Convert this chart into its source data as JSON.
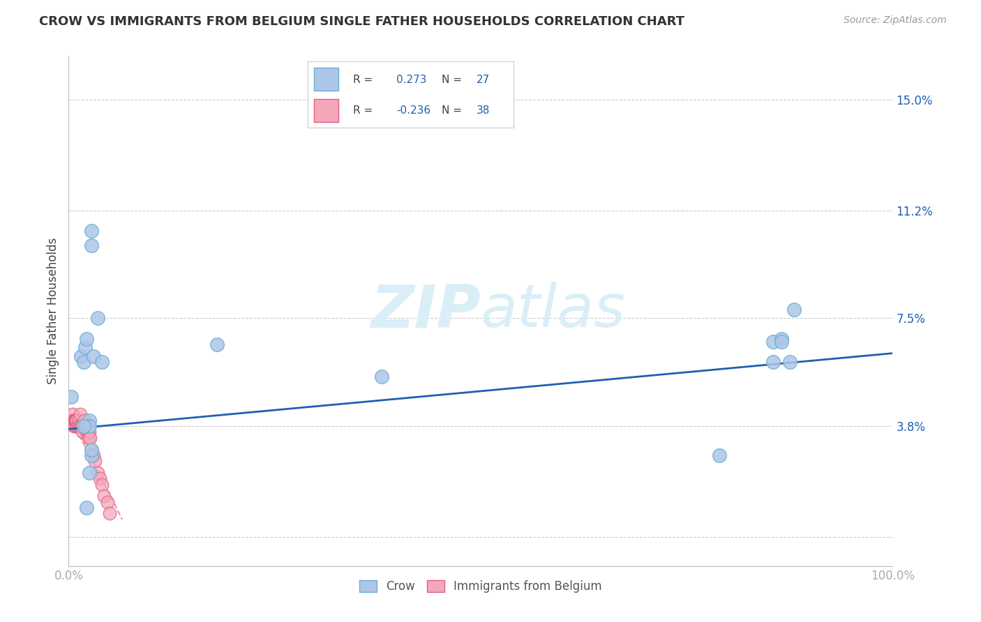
{
  "title": "CROW VS IMMIGRANTS FROM BELGIUM SINGLE FATHER HOUSEHOLDS CORRELATION CHART",
  "source": "Source: ZipAtlas.com",
  "ylabel": "Single Father Households",
  "xlim": [
    0.0,
    1.0
  ],
  "ylim": [
    -0.01,
    0.165
  ],
  "yticks": [
    0.0,
    0.038,
    0.075,
    0.112,
    0.15
  ],
  "ytick_labels": [
    "",
    "3.8%",
    "7.5%",
    "11.2%",
    "15.0%"
  ],
  "xticks": [
    0.0,
    0.1,
    0.2,
    0.3,
    0.4,
    0.5,
    0.6,
    0.7,
    0.8,
    0.9,
    1.0
  ],
  "xtick_labels": [
    "0.0%",
    "",
    "",
    "",
    "",
    "",
    "",
    "",
    "",
    "",
    "100.0%"
  ],
  "crow_R": 0.273,
  "crow_N": 27,
  "belgium_R": -0.236,
  "belgium_N": 38,
  "crow_color": "#adc6e8",
  "crow_edge_color": "#6baed6",
  "belgium_color": "#f4a7b9",
  "belgium_edge_color": "#e06080",
  "trend_crow_color": "#2060b0",
  "trend_belgium_color": "#e06080",
  "watermark_color": "#daeef8",
  "crow_x": [
    0.003,
    0.015,
    0.018,
    0.02,
    0.022,
    0.025,
    0.028,
    0.028,
    0.03,
    0.035,
    0.04,
    0.18,
    0.38,
    0.79,
    0.855,
    0.865,
    0.875,
    0.88
  ],
  "crow_y": [
    0.048,
    0.062,
    0.06,
    0.065,
    0.068,
    0.04,
    0.1,
    0.105,
    0.062,
    0.075,
    0.06,
    0.066,
    0.055,
    0.028,
    0.067,
    0.068,
    0.06,
    0.078
  ],
  "crow_x2": [
    0.022,
    0.025,
    0.028,
    0.018,
    0.025,
    0.028,
    0.022,
    0.855,
    0.865
  ],
  "crow_y2": [
    0.038,
    0.038,
    0.028,
    0.038,
    0.022,
    0.03,
    0.01,
    0.06,
    0.067
  ],
  "belgium_x": [
    0.003,
    0.004,
    0.005,
    0.006,
    0.006,
    0.007,
    0.007,
    0.008,
    0.008,
    0.009,
    0.01,
    0.01,
    0.011,
    0.012,
    0.012,
    0.013,
    0.014,
    0.015,
    0.016,
    0.017,
    0.018,
    0.019,
    0.02,
    0.021,
    0.022,
    0.023,
    0.024,
    0.025,
    0.026,
    0.028,
    0.03,
    0.032,
    0.035,
    0.038,
    0.04,
    0.043,
    0.047,
    0.05
  ],
  "belgium_y": [
    0.04,
    0.04,
    0.042,
    0.04,
    0.038,
    0.038,
    0.04,
    0.04,
    0.04,
    0.04,
    0.038,
    0.04,
    0.038,
    0.038,
    0.04,
    0.038,
    0.042,
    0.038,
    0.038,
    0.036,
    0.038,
    0.04,
    0.038,
    0.038,
    0.036,
    0.036,
    0.034,
    0.036,
    0.034,
    0.03,
    0.028,
    0.026,
    0.022,
    0.02,
    0.018,
    0.014,
    0.012,
    0.008
  ],
  "crow_trend_x": [
    0.0,
    1.0
  ],
  "crow_trend_y": [
    0.037,
    0.063
  ],
  "belgium_trend_x": [
    0.0,
    0.065
  ],
  "belgium_trend_y": [
    0.042,
    0.006
  ]
}
